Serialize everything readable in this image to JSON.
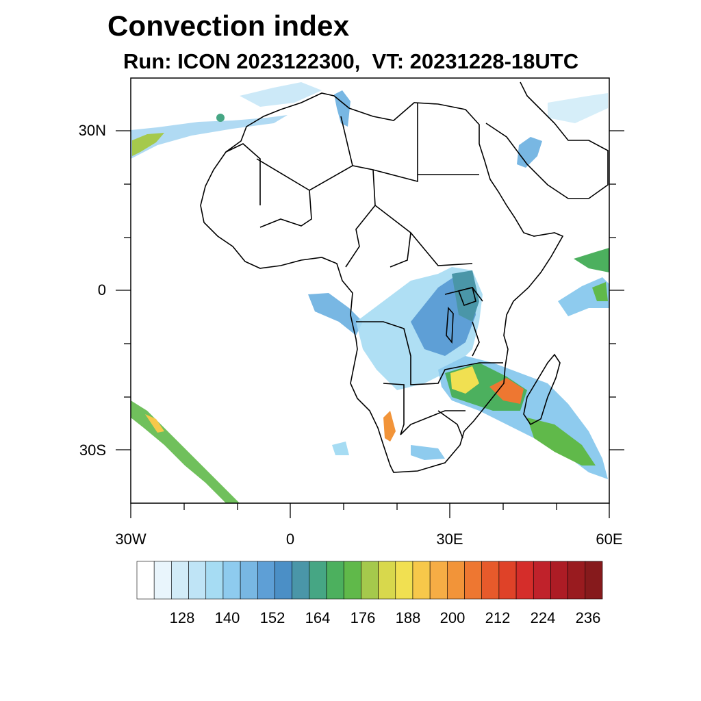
{
  "title": "Convection index",
  "subtitle": "Run: ICON 2023122300,  VT: 20231228-18UTC",
  "axes": {
    "lon_range": [
      -30,
      60
    ],
    "lat_range": [
      -40,
      40
    ],
    "x_tick_labels": [
      {
        "lon": -30,
        "label": "30W"
      },
      {
        "lon": 0,
        "label": "0"
      },
      {
        "lon": 30,
        "label": "30E"
      },
      {
        "lon": 60,
        "label": "60E"
      }
    ],
    "y_tick_labels": [
      {
        "lat": 30,
        "label": "30N"
      },
      {
        "lat": 0,
        "label": "0"
      },
      {
        "lat": -30,
        "label": "30S"
      }
    ]
  },
  "colorbar": {
    "colors": [
      "#ffffff",
      "#e9f5fc",
      "#d2ecf8",
      "#bfe4f6",
      "#a6dcf3",
      "#8ecbee",
      "#78b7e3",
      "#5e9fd6",
      "#4b8fc6",
      "#4a96a8",
      "#46a684",
      "#4cb05e",
      "#60b94a",
      "#a5c94c",
      "#d8d84c",
      "#f1e051",
      "#f7c84a",
      "#f6ad45",
      "#f29439",
      "#ee7731",
      "#e75a2b",
      "#df4228",
      "#d52d2a",
      "#c0222b",
      "#ad1c25",
      "#991b1f",
      "#861a1c"
    ],
    "tick_labels": [
      "128",
      "140",
      "152",
      "164",
      "176",
      "188",
      "200",
      "212",
      "224",
      "236"
    ]
  }
}
